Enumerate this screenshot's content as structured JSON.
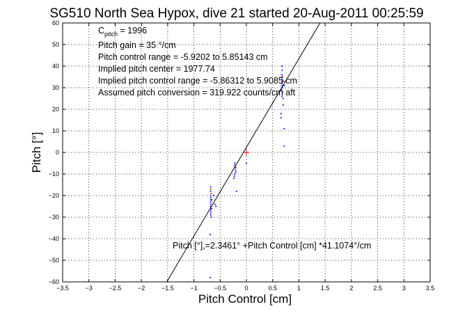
{
  "chart_data": {
    "type": "scatter",
    "title": "SG510 North Sea Hypox, dive 21 started 20-Aug-2011 00:25:59",
    "xlabel": "Pitch Control [cm]",
    "ylabel": "Pitch [°]",
    "xlim": [
      -3.5,
      3.5
    ],
    "ylim": [
      -60,
      60
    ],
    "xticks": [
      -3.5,
      -3,
      -2.5,
      -2,
      -1.5,
      -1,
      -0.5,
      0,
      0.5,
      1,
      1.5,
      2,
      2.5,
      3,
      3.5
    ],
    "yticks": [
      -60,
      -50,
      -40,
      -30,
      -20,
      -10,
      0,
      10,
      20,
      30,
      40,
      50,
      60
    ],
    "grid": true,
    "annotations": {
      "c_pitch_prefix": "C",
      "c_pitch_sub": "pitch",
      "c_pitch_value": " = 1996",
      "gain": "Pitch gain = 35 °/cm",
      "control_range": "Pitch control range = -5.9202 to 5.85143 cm",
      "implied_center": "Implied pitch center = 1977.74",
      "implied_range": "Implied pitch control range = -5.86312 to 5.9085 cm",
      "conversion": "Assumed pitch conversion = 319.922 counts/cm aft",
      "fit_equation": "Pitch [°],=2.3461° +Pitch Control [cm] *41.1074°/cm"
    },
    "fit_line": {
      "intercept": 2.3461,
      "slope": 41.1074,
      "color": "#000000"
    },
    "center_marker": {
      "x": 0,
      "y": 0,
      "color": "#ff0000"
    },
    "series": [
      {
        "color": "#0000ff",
        "points": [
          [
            -0.68,
            -16
          ],
          [
            -0.68,
            -18
          ],
          [
            -0.68,
            -20
          ],
          [
            -0.68,
            -21
          ],
          [
            -0.68,
            -22
          ],
          [
            -0.68,
            -23
          ],
          [
            -0.68,
            -24
          ],
          [
            -0.68,
            -25
          ],
          [
            -0.68,
            -26
          ],
          [
            -0.68,
            -27
          ],
          [
            -0.68,
            -28
          ],
          [
            -0.68,
            -29
          ],
          [
            -0.67,
            -30
          ],
          [
            -0.66,
            -22
          ],
          [
            -0.66,
            -26
          ],
          [
            -0.69,
            -38
          ],
          [
            -0.62,
            -20
          ],
          [
            -0.6,
            -24
          ],
          [
            -0.58,
            -25
          ],
          [
            -0.22,
            -5
          ],
          [
            -0.22,
            -6
          ],
          [
            -0.21,
            -7
          ],
          [
            -0.21,
            -8
          ],
          [
            -0.2,
            -9
          ],
          [
            -0.22,
            -10
          ],
          [
            -0.23,
            -11
          ],
          [
            -0.24,
            -12
          ],
          [
            -0.19,
            -18
          ],
          [
            0.0,
            -5
          ],
          [
            0.68,
            40
          ],
          [
            0.68,
            38
          ],
          [
            0.68,
            36
          ],
          [
            0.68,
            35
          ],
          [
            0.68,
            34
          ],
          [
            0.68,
            33
          ],
          [
            0.68,
            32
          ],
          [
            0.68,
            31
          ],
          [
            0.68,
            30
          ],
          [
            0.67,
            29
          ],
          [
            0.69,
            28
          ],
          [
            0.68,
            26
          ],
          [
            0.7,
            25
          ],
          [
            0.7,
            22
          ],
          [
            0.71,
            33
          ],
          [
            0.72,
            31
          ],
          [
            0.66,
            18
          ],
          [
            0.66,
            16
          ],
          [
            0.72,
            11
          ],
          [
            0.72,
            3
          ],
          [
            -0.69,
            -58
          ]
        ]
      },
      {
        "color": "#ff0000",
        "points": [
          [
            -0.68,
            -17
          ],
          [
            -0.67,
            -19
          ],
          [
            0.69,
            35
          ],
          [
            0.7,
            33
          ],
          [
            -0.2,
            -7
          ],
          [
            0.0,
            0
          ]
        ]
      }
    ]
  }
}
